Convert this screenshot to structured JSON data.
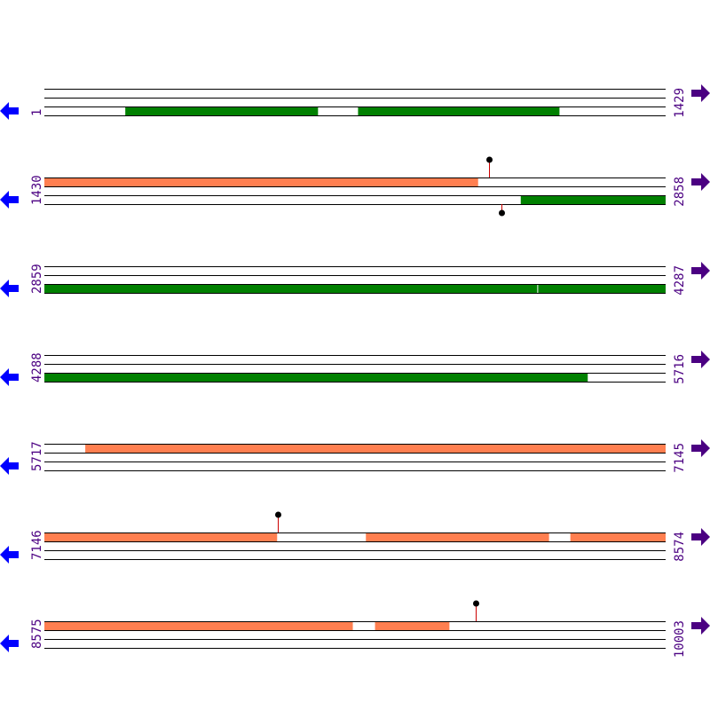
{
  "colors": {
    "forward_feature": "#ff7f50",
    "reverse_feature": "#008000",
    "left_arrow": "#0000ff",
    "right_arrow": "#4b0082",
    "label": "#4b0082",
    "stem": "#cc0000"
  },
  "rows": [
    {
      "start": "1",
      "end": "1429",
      "range": [
        1,
        1429
      ],
      "features": [
        {
          "track": 3,
          "from": 187,
          "to": 630,
          "color": "reverse_feature"
        },
        {
          "track": 3,
          "from": 722,
          "to": 1185,
          "color": "reverse_feature"
        }
      ],
      "markers": []
    },
    {
      "start": "1430",
      "end": "2858",
      "range": [
        1430,
        2858
      ],
      "features": [
        {
          "track": 1,
          "from": 1430,
          "to": 2427,
          "color": "forward_feature"
        },
        {
          "track": 3,
          "from": 2525,
          "to": 2858,
          "color": "reverse_feature"
        }
      ],
      "markers": [
        {
          "pos": 2452,
          "side": "up"
        },
        {
          "pos": 2481,
          "side": "down"
        }
      ]
    },
    {
      "start": "2859",
      "end": "4287",
      "range": [
        2859,
        4287
      ],
      "features": [
        {
          "track": 3,
          "from": 2859,
          "to": 3992,
          "color": "reverse_feature"
        },
        {
          "track": 3,
          "from": 3994,
          "to": 4287,
          "color": "reverse_feature"
        }
      ],
      "markers": []
    },
    {
      "start": "4288",
      "end": "5716",
      "range": [
        4288,
        5716
      ],
      "features": [
        {
          "track": 3,
          "from": 4288,
          "to": 5537,
          "color": "reverse_feature"
        }
      ],
      "markers": []
    },
    {
      "start": "5717",
      "end": "7145",
      "range": [
        5717,
        7145
      ],
      "features": [
        {
          "track": 1,
          "from": 5811,
          "to": 7145,
          "color": "forward_feature"
        }
      ],
      "markers": []
    },
    {
      "start": "7146",
      "end": "8574",
      "range": [
        7146,
        8574
      ],
      "features": [
        {
          "track": 1,
          "from": 7146,
          "to": 7681,
          "color": "forward_feature"
        },
        {
          "track": 1,
          "from": 7885,
          "to": 8306,
          "color": "forward_feature"
        },
        {
          "track": 1,
          "from": 8355,
          "to": 8574,
          "color": "forward_feature"
        }
      ],
      "markers": [
        {
          "pos": 7683,
          "side": "up"
        }
      ]
    },
    {
      "start": "8575",
      "end": "10003",
      "range": [
        8575,
        10003
      ],
      "features": [
        {
          "track": 1,
          "from": 8575,
          "to": 9284,
          "color": "forward_feature"
        },
        {
          "track": 1,
          "from": 9335,
          "to": 9506,
          "color": "forward_feature"
        }
      ],
      "markers": [
        {
          "pos": 9567,
          "side": "up"
        }
      ]
    }
  ]
}
